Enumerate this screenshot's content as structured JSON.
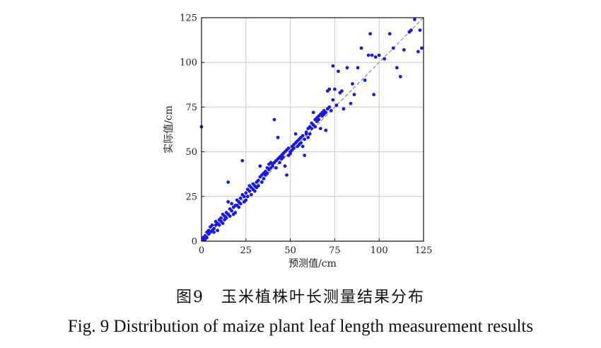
{
  "chart_data": {
    "type": "scatter",
    "xlabel": "预测值/cm",
    "ylabel": "实际值/cm",
    "xlim": [
      0,
      125
    ],
    "ylim": [
      0,
      125
    ],
    "xticks": [
      0,
      25,
      50,
      75,
      100,
      125
    ],
    "yticks": [
      0,
      25,
      50,
      75,
      100,
      125
    ],
    "grid": true,
    "reference_line": {
      "from": [
        0,
        0
      ],
      "to": [
        125,
        125
      ],
      "style": "dashed"
    },
    "point_color": "#1a1adb",
    "series": [
      {
        "points": [
          [
            0,
            64
          ],
          [
            1,
            1
          ],
          [
            1,
            2
          ],
          [
            2,
            3
          ],
          [
            2,
            1
          ],
          [
            3,
            5
          ],
          [
            3,
            2
          ],
          [
            4,
            4
          ],
          [
            4,
            6
          ],
          [
            5,
            5
          ],
          [
            5,
            8
          ],
          [
            6,
            6
          ],
          [
            6,
            9
          ],
          [
            7,
            5
          ],
          [
            7,
            7
          ],
          [
            8,
            9
          ],
          [
            8,
            11
          ],
          [
            9,
            6
          ],
          [
            9,
            10
          ],
          [
            10,
            9
          ],
          [
            10,
            12
          ],
          [
            11,
            11
          ],
          [
            11,
            13
          ],
          [
            12,
            10
          ],
          [
            12,
            15
          ],
          [
            13,
            14
          ],
          [
            13,
            12
          ],
          [
            14,
            16
          ],
          [
            14,
            13
          ],
          [
            15,
            15
          ],
          [
            15,
            33
          ],
          [
            15,
            22
          ],
          [
            16,
            18
          ],
          [
            16,
            14
          ],
          [
            17,
            17
          ],
          [
            17,
            21
          ],
          [
            18,
            19
          ],
          [
            18,
            15
          ],
          [
            19,
            20
          ],
          [
            19,
            16
          ],
          [
            20,
            23
          ],
          [
            20,
            20
          ],
          [
            21,
            22
          ],
          [
            21,
            19
          ],
          [
            22,
            24
          ],
          [
            22,
            21
          ],
          [
            23,
            26
          ],
          [
            23,
            45
          ],
          [
            24,
            25
          ],
          [
            24,
            22
          ],
          [
            25,
            27
          ],
          [
            25,
            23
          ],
          [
            26,
            29
          ],
          [
            26,
            25
          ],
          [
            27,
            28
          ],
          [
            27,
            31
          ],
          [
            28,
            30
          ],
          [
            28,
            26
          ],
          [
            29,
            32
          ],
          [
            29,
            29
          ],
          [
            30,
            31
          ],
          [
            30,
            28
          ],
          [
            31,
            33
          ],
          [
            31,
            30
          ],
          [
            32,
            34
          ],
          [
            32,
            31
          ],
          [
            33,
            36
          ],
          [
            33,
            42
          ],
          [
            34,
            37
          ],
          [
            34,
            33
          ],
          [
            35,
            38
          ],
          [
            35,
            35
          ],
          [
            36,
            39
          ],
          [
            36,
            37
          ],
          [
            37,
            41
          ],
          [
            37,
            38
          ],
          [
            38,
            43
          ],
          [
            38,
            40
          ],
          [
            39,
            44
          ],
          [
            39,
            41
          ],
          [
            40,
            43
          ],
          [
            40,
            42
          ],
          [
            41,
            44
          ],
          [
            41,
            68
          ],
          [
            42,
            45
          ],
          [
            42,
            41
          ],
          [
            43,
            46
          ],
          [
            43,
            58
          ],
          [
            44,
            47
          ],
          [
            44,
            44
          ],
          [
            45,
            48
          ],
          [
            45,
            46
          ],
          [
            46,
            49
          ],
          [
            46,
            47
          ],
          [
            47,
            50
          ],
          [
            47,
            42
          ],
          [
            48,
            51
          ],
          [
            48,
            37
          ],
          [
            49,
            52
          ],
          [
            49,
            48
          ],
          [
            50,
            50
          ],
          [
            50,
            49
          ],
          [
            51,
            53
          ],
          [
            51,
            51
          ],
          [
            52,
            54
          ],
          [
            52,
            52
          ],
          [
            53,
            55
          ],
          [
            53,
            60
          ],
          [
            54,
            56
          ],
          [
            54,
            53
          ],
          [
            55,
            57
          ],
          [
            55,
            54
          ],
          [
            56,
            58
          ],
          [
            56,
            55
          ],
          [
            57,
            59
          ],
          [
            57,
            53
          ],
          [
            58,
            48
          ],
          [
            58,
            57
          ],
          [
            59,
            61
          ],
          [
            59,
            60
          ],
          [
            60,
            63
          ],
          [
            60,
            58
          ],
          [
            61,
            64
          ],
          [
            61,
            60
          ],
          [
            62,
            66
          ],
          [
            62,
            63
          ],
          [
            63,
            72
          ],
          [
            63,
            65
          ],
          [
            64,
            68
          ],
          [
            64,
            64
          ],
          [
            65,
            69
          ],
          [
            65,
            67
          ],
          [
            66,
            70
          ],
          [
            66,
            68
          ],
          [
            67,
            63
          ],
          [
            67,
            71
          ],
          [
            68,
            72
          ],
          [
            68,
            70
          ],
          [
            69,
            73
          ],
          [
            69,
            71
          ],
          [
            70,
            72
          ],
          [
            70,
            62
          ],
          [
            71,
            74
          ],
          [
            71,
            84
          ],
          [
            72,
            85
          ],
          [
            72,
            75
          ],
          [
            73,
            73
          ],
          [
            74,
            79
          ],
          [
            74,
            98
          ],
          [
            75,
            85
          ],
          [
            76,
            76
          ],
          [
            77,
            95
          ],
          [
            78,
            83
          ],
          [
            79,
            84
          ],
          [
            80,
            74
          ],
          [
            82,
            97
          ],
          [
            84,
            77
          ],
          [
            85,
            88
          ],
          [
            86,
            82
          ],
          [
            88,
            97
          ],
          [
            90,
            108
          ],
          [
            92,
            90
          ],
          [
            94,
            104
          ],
          [
            95,
            116
          ],
          [
            96,
            104
          ],
          [
            97,
            82
          ],
          [
            98,
            103
          ],
          [
            100,
            104
          ],
          [
            103,
            102
          ],
          [
            106,
            116
          ],
          [
            108,
            108
          ],
          [
            110,
            97
          ],
          [
            112,
            92
          ],
          [
            114,
            107
          ],
          [
            117,
            117
          ],
          [
            118,
            118
          ],
          [
            120,
            124
          ],
          [
            122,
            106
          ],
          [
            123,
            118
          ],
          [
            124,
            108
          ]
        ]
      }
    ]
  },
  "caption": {
    "cn": "图9　玉米植株叶长测量结果分布",
    "en": "Fig. 9  Distribution of maize plant leaf length measurement results"
  }
}
